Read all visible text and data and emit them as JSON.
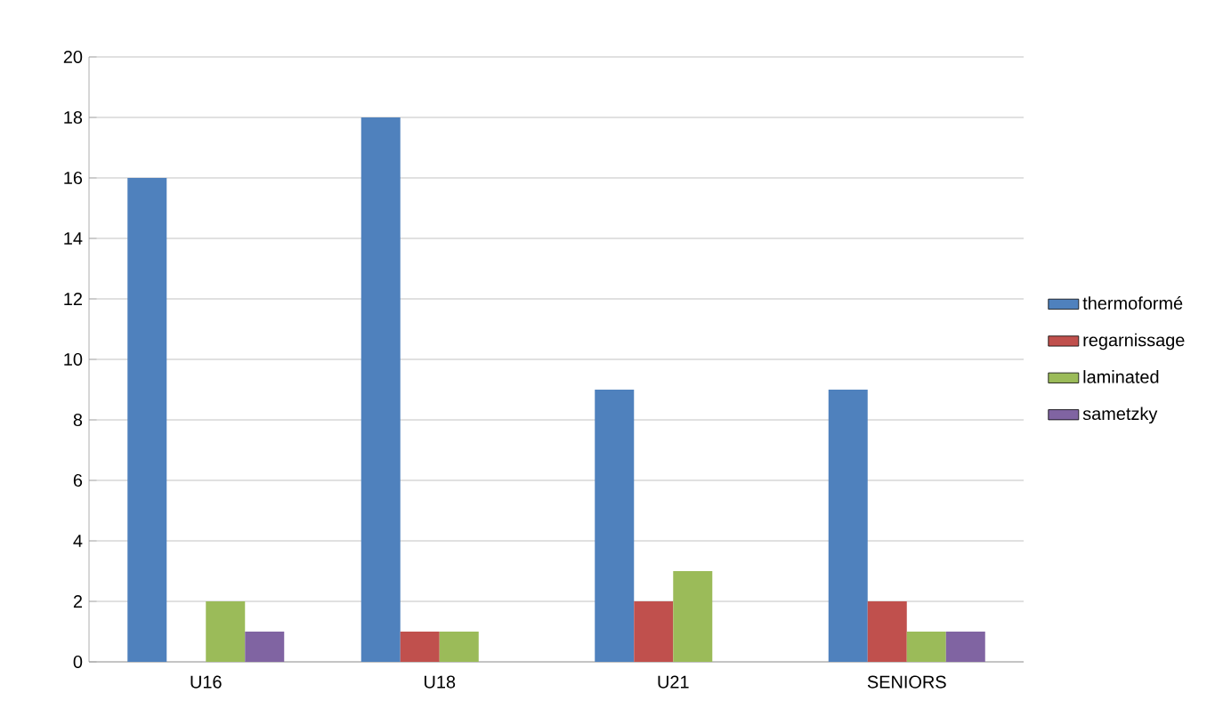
{
  "chart_data": {
    "type": "bar",
    "categories": [
      "U16",
      "U18",
      "U21",
      "SENIORS"
    ],
    "series": [
      {
        "name": "thermoformé",
        "color": "#4f81bd",
        "values": [
          16,
          18,
          9,
          9
        ]
      },
      {
        "name": "regarnissage",
        "color": "#c0504d",
        "values": [
          null,
          1,
          2,
          2
        ]
      },
      {
        "name": "laminated",
        "color": "#9bbb59",
        "values": [
          2,
          1,
          3,
          1
        ]
      },
      {
        "name": "sametzky",
        "color": "#8064a2",
        "values": [
          1,
          null,
          null,
          1
        ]
      }
    ],
    "ylim": [
      0,
      20
    ],
    "yticks": [
      0,
      2,
      4,
      6,
      8,
      10,
      12,
      14,
      16,
      18,
      20
    ],
    "grid": "y",
    "legend": "right"
  }
}
